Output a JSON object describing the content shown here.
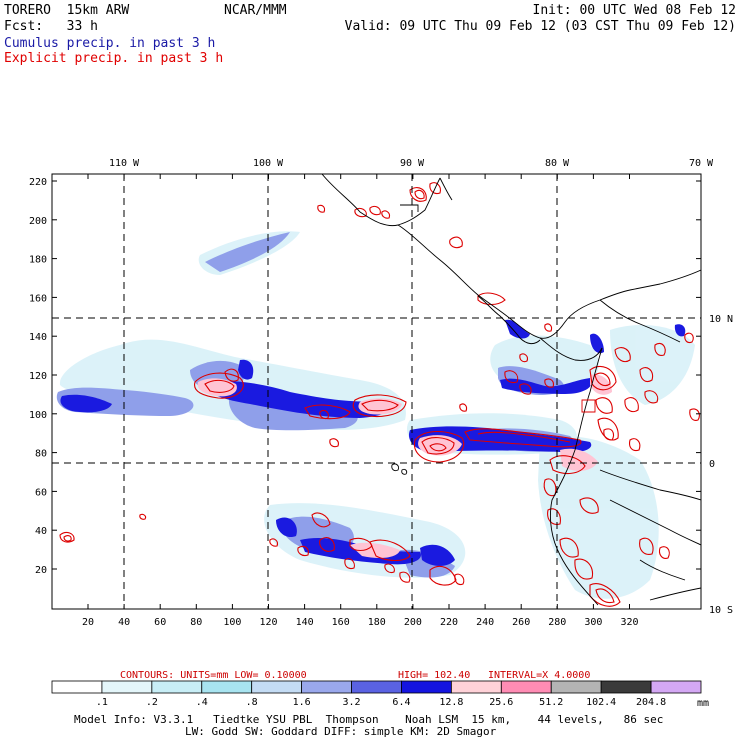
{
  "header": {
    "model_name": "TORERO  15km ARW",
    "org": "NCAR/MMM",
    "init": "Init: 00 UTC Wed 08 Feb 12",
    "fcst": "Fcst:   33 h",
    "valid": "Valid: 09 UTC Thu 09 Feb 12 (03 CST Thu 09 Feb 12)",
    "field_1": "Cumulus precip. in past 3 h",
    "field_2": "Explicit precip. in past 3 h",
    "field_1_color": "#1a1aa6",
    "field_2_color": "#e00000"
  },
  "map": {
    "lon_labels": [
      "110 W",
      "100 W",
      "90 W",
      "80 W",
      "70 W"
    ],
    "lat_labels": [
      "10 N",
      "0",
      "10 S"
    ],
    "y_ticks": [
      "220",
      "200",
      "180",
      "160",
      "140",
      "120",
      "100",
      "80",
      "60",
      "40",
      "20"
    ],
    "x_ticks": [
      "20",
      "40",
      "60",
      "80",
      "100",
      "120",
      "140",
      "160",
      "180",
      "200",
      "220",
      "240",
      "260",
      "280",
      "300",
      "320"
    ]
  },
  "contours": {
    "units": "CONTOURS:  UNITS=mm  LOW= 0.10000",
    "high": "HIGH=  102.40",
    "interval": "INTERVAL=X  4.0000",
    "color": "#cc0000"
  },
  "colorbar": {
    "labels": [
      ".1",
      ".2",
      ".4",
      ".8",
      "1.6",
      "3.2",
      "6.4",
      "12.8",
      "25.6",
      "51.2",
      "102.4",
      "204.8"
    ],
    "units": "mm",
    "colors": [
      "#ffffff",
      "#e4f6fa",
      "#c8eef6",
      "#a8e4f0",
      "#c4dcf4",
      "#9aa8ec",
      "#5a62e2",
      "#1414e0",
      "#ffd2d8",
      "#ff8cb4",
      "#b4b4b4",
      "#3a3a3a",
      "#d4a8f4"
    ]
  },
  "footer": {
    "line1": "Model Info: V3.3.1   Tiedtke YSU PBL  Thompson    Noah LSM  15 km,    44 levels,   86 sec",
    "line2": "LW: Godd SW: Goddard DIFF: simple KM: 2D Smagor"
  }
}
